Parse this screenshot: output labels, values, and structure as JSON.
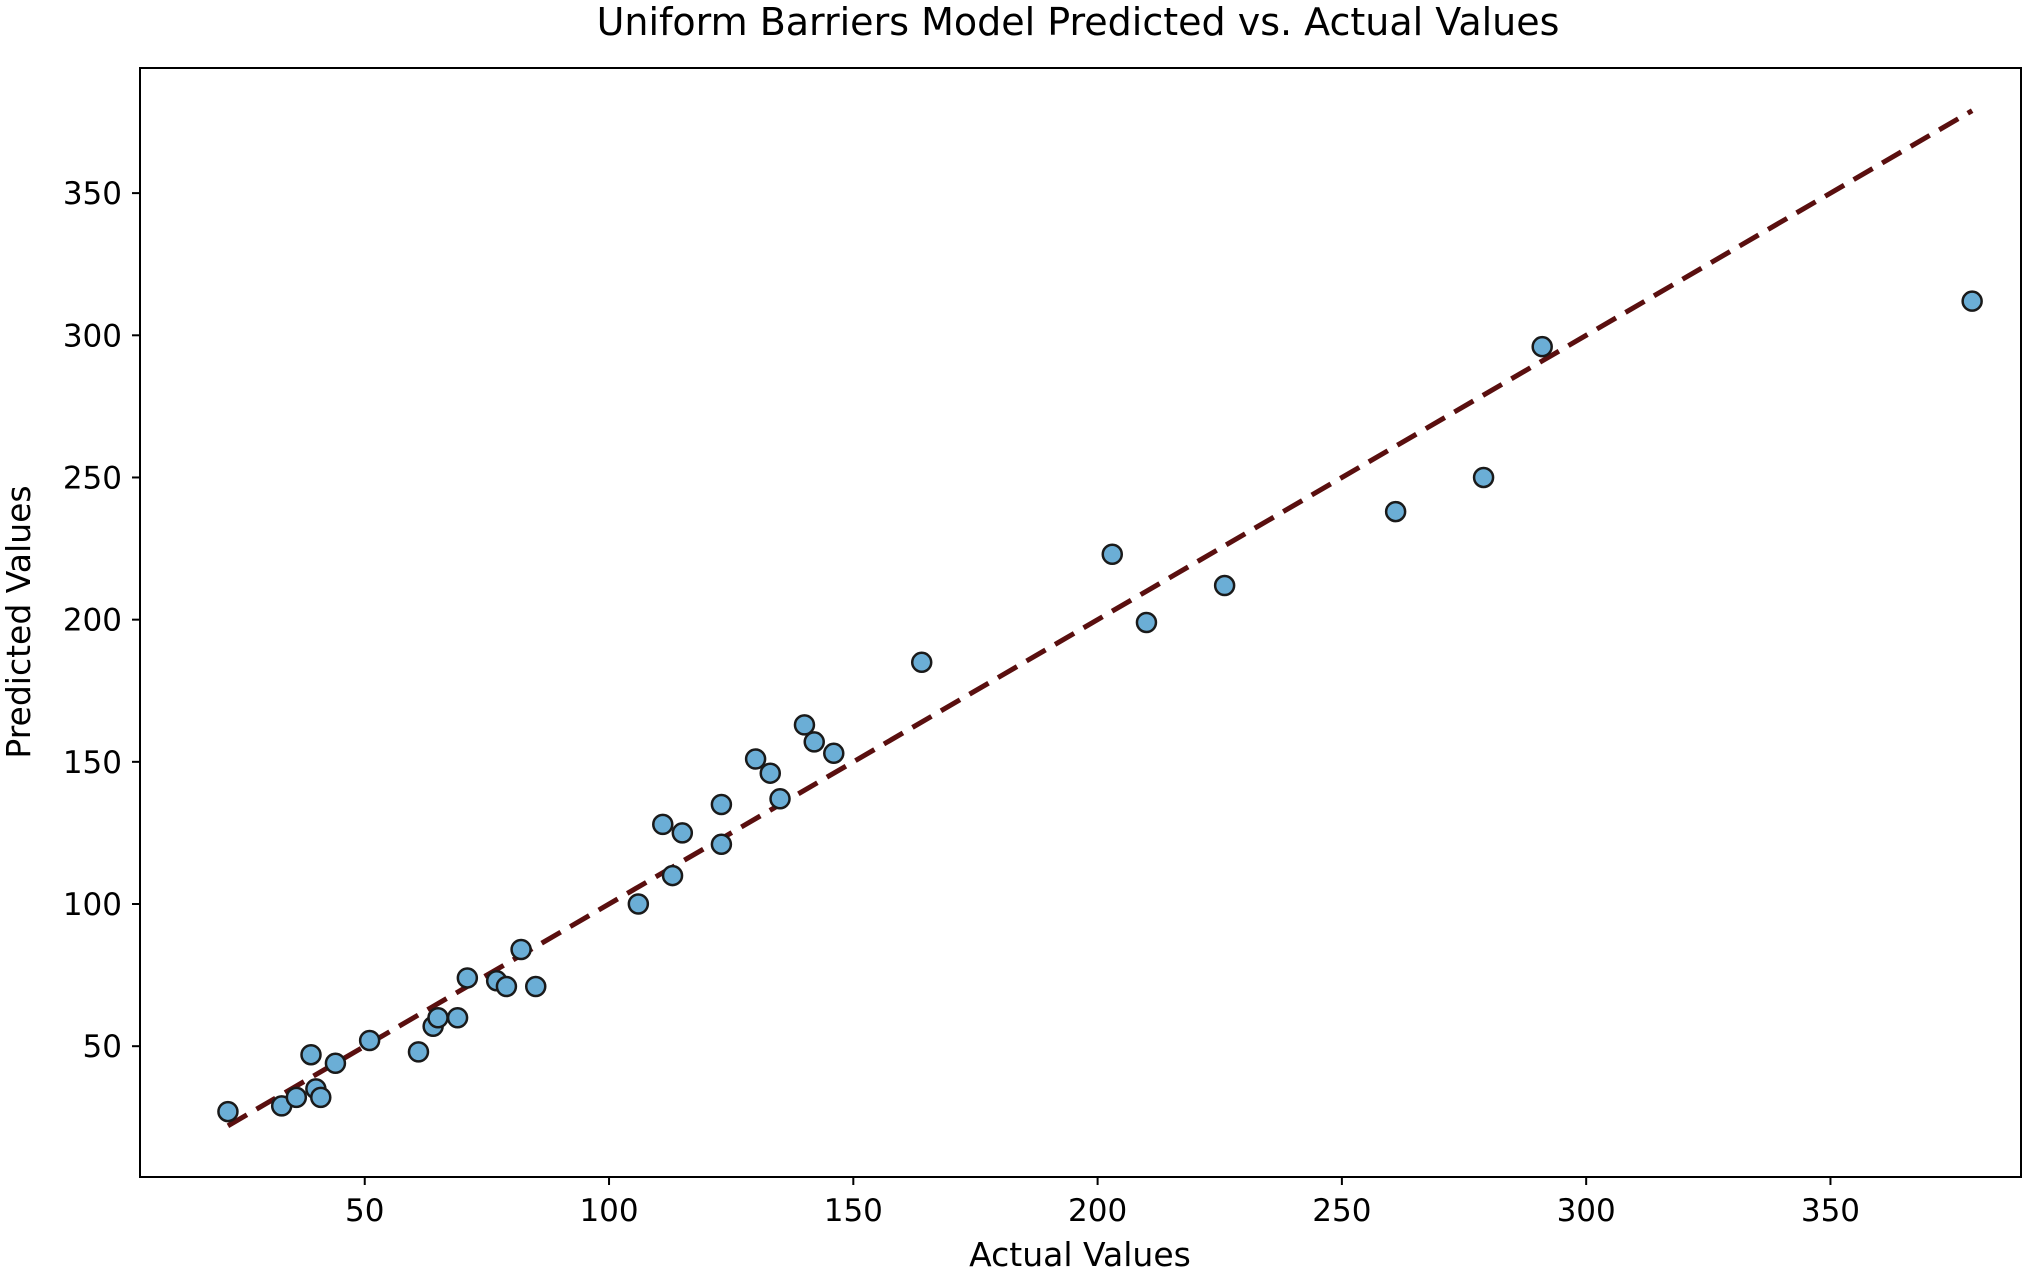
{
  "chart_data": {
    "type": "scatter",
    "title": "Uniform Barriers Model Predicted vs. Actual Values",
    "xlabel": "Actual Values",
    "ylabel": "Predicted Values",
    "xlim": [
      4,
      389
    ],
    "ylim": [
      4,
      394
    ],
    "xticks": [
      50,
      100,
      150,
      200,
      250,
      300,
      350
    ],
    "yticks": [
      50,
      100,
      150,
      200,
      250,
      300,
      350
    ],
    "grid": false,
    "legend": "none",
    "colors": {
      "marker_fill": "#6baed6",
      "marker_edge": "#1a1a1a",
      "reference_line": "#5a0f0f",
      "axes": "#000000"
    },
    "reference_line": {
      "style": "dashed",
      "x": [
        22,
        379
      ],
      "y": [
        22,
        379
      ]
    },
    "series": [
      {
        "points": [
          [
            22,
            27
          ],
          [
            33,
            29
          ],
          [
            36,
            32
          ],
          [
            39,
            47
          ],
          [
            40,
            35
          ],
          [
            41,
            32
          ],
          [
            44,
            44
          ],
          [
            51,
            52
          ],
          [
            61,
            48
          ],
          [
            64,
            57
          ],
          [
            65,
            60
          ],
          [
            69,
            60
          ],
          [
            71,
            74
          ],
          [
            77,
            73
          ],
          [
            79,
            71
          ],
          [
            82,
            84
          ],
          [
            85,
            71
          ],
          [
            106,
            100
          ],
          [
            111,
            128
          ],
          [
            113,
            110
          ],
          [
            115,
            125
          ],
          [
            123,
            135
          ],
          [
            123,
            121
          ],
          [
            130,
            151
          ],
          [
            133,
            146
          ],
          [
            135,
            137
          ],
          [
            140,
            163
          ],
          [
            142,
            157
          ],
          [
            146,
            153
          ],
          [
            164,
            185
          ],
          [
            203,
            223
          ],
          [
            210,
            199
          ],
          [
            226,
            212
          ],
          [
            261,
            238
          ],
          [
            279,
            250
          ],
          [
            291,
            296
          ],
          [
            379,
            312
          ]
        ]
      }
    ]
  }
}
